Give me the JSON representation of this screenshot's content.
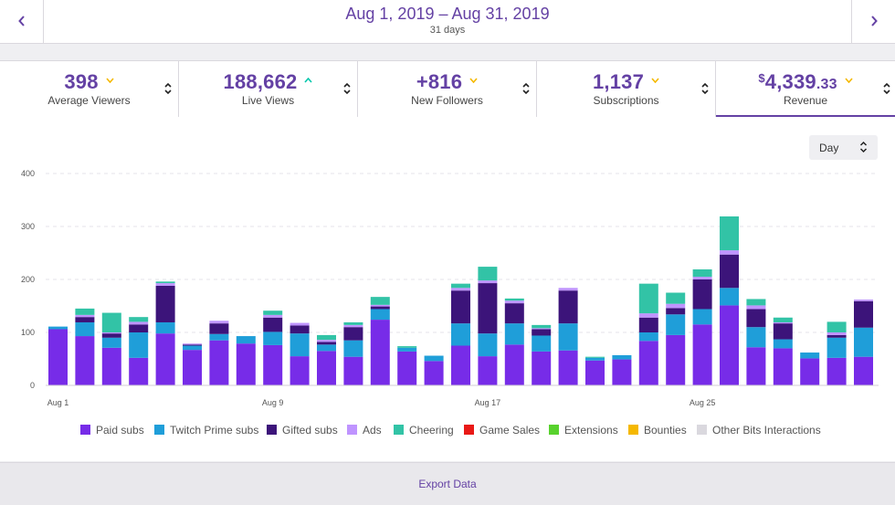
{
  "header": {
    "date_range": "Aug 1, 2019 – Aug 31, 2019",
    "days": "31 days",
    "prev_icon": "chevron-left-icon",
    "next_icon": "chevron-right-icon"
  },
  "stats": [
    {
      "value": "398",
      "label": "Average Viewers",
      "trend": "down",
      "trend_color": "#f5b800"
    },
    {
      "value": "188,662",
      "label": "Live Views",
      "trend": "up",
      "trend_color": "#00c7ac"
    },
    {
      "value": "+816",
      "label": "New Followers",
      "trend": "down",
      "trend_color": "#f5b800"
    },
    {
      "value": "1,137",
      "label": "Subscriptions",
      "trend": "down",
      "trend_color": "#f5b800"
    },
    {
      "currency": "$",
      "value": "4,339",
      "cents": ".33",
      "label": "Revenue",
      "trend": "down",
      "trend_color": "#f5b800"
    }
  ],
  "granularity": {
    "selected": "Day"
  },
  "footer": {
    "export_label": "Export Data"
  },
  "colors": {
    "paid": "#772ce8",
    "prime": "#1f9ed9",
    "gifted": "#3c147a",
    "ads": "#bf94ff",
    "cheering": "#32c3a6",
    "game_sales": "#e91916",
    "extensions": "#58d22d",
    "bounties": "#f5b800",
    "other_bits": "#dad8de",
    "accent": "#6441a4"
  },
  "chart_data": {
    "type": "bar",
    "stacked": true,
    "ylim": [
      0,
      400
    ],
    "yticks": [
      0,
      100,
      200,
      300,
      400
    ],
    "xtick_labels": [
      {
        "index": 0,
        "label": "Aug 1"
      },
      {
        "index": 8,
        "label": "Aug 9"
      },
      {
        "index": 16,
        "label": "Aug 17"
      },
      {
        "index": 24,
        "label": "Aug 25"
      }
    ],
    "categories": [
      "Aug 1",
      "Aug 2",
      "Aug 3",
      "Aug 4",
      "Aug 5",
      "Aug 6",
      "Aug 7",
      "Aug 8",
      "Aug 9",
      "Aug 10",
      "Aug 11",
      "Aug 12",
      "Aug 13",
      "Aug 14",
      "Aug 15",
      "Aug 16",
      "Aug 17",
      "Aug 18",
      "Aug 19",
      "Aug 20",
      "Aug 21",
      "Aug 22",
      "Aug 23",
      "Aug 24",
      "Aug 25",
      "Aug 26",
      "Aug 27",
      "Aug 28",
      "Aug 29",
      "Aug 30",
      "Aug 31"
    ],
    "grid": true,
    "legend_position": "bottom",
    "series": [
      {
        "name": "Paid subs",
        "color_key": "paid",
        "values": [
          106,
          93,
          71,
          52,
          98,
          67,
          85,
          79,
          76,
          55,
          65,
          54,
          124,
          64,
          46,
          75,
          55,
          77,
          64,
          66,
          47,
          49,
          84,
          95,
          115,
          151,
          72,
          70,
          51,
          52,
          54
        ]
      },
      {
        "name": "Twitch Prime subs",
        "color_key": "prime",
        "values": [
          5,
          26,
          19,
          48,
          21,
          8,
          12,
          14,
          25,
          43,
          12,
          31,
          20,
          7,
          10,
          42,
          43,
          40,
          30,
          51,
          5,
          8,
          16,
          39,
          29,
          33,
          38,
          17,
          11,
          38,
          55
        ]
      },
      {
        "name": "Gifted subs",
        "color_key": "gifted",
        "values": [
          0,
          10,
          8,
          15,
          69,
          2,
          20,
          0,
          27,
          15,
          5,
          25,
          5,
          0,
          0,
          62,
          95,
          38,
          12,
          62,
          0,
          0,
          28,
          12,
          56,
          63,
          34,
          30,
          0,
          5,
          50
        ]
      },
      {
        "name": "Ads",
        "color_key": "ads",
        "values": [
          0,
          4,
          2,
          5,
          5,
          2,
          5,
          0,
          5,
          5,
          4,
          4,
          3,
          0,
          0,
          5,
          5,
          5,
          2,
          5,
          0,
          0,
          8,
          8,
          5,
          8,
          7,
          2,
          0,
          5,
          3
        ]
      },
      {
        "name": "Cheering",
        "color_key": "cheering",
        "values": [
          0,
          12,
          37,
          9,
          3,
          0,
          0,
          0,
          8,
          0,
          9,
          5,
          15,
          3,
          0,
          8,
          26,
          4,
          6,
          0,
          2,
          0,
          56,
          21,
          14,
          64,
          12,
          9,
          0,
          20,
          0
        ]
      },
      {
        "name": "Game Sales",
        "color_key": "game_sales",
        "values": [
          0,
          0,
          0,
          0,
          0,
          0,
          0,
          0,
          0,
          0,
          0,
          0,
          0,
          0,
          0,
          0,
          0,
          0,
          0,
          0,
          0,
          0,
          0,
          0,
          0,
          0,
          0,
          0,
          0,
          0,
          0
        ]
      },
      {
        "name": "Extensions",
        "color_key": "extensions",
        "values": [
          0,
          0,
          0,
          0,
          0,
          0,
          0,
          0,
          0,
          0,
          0,
          0,
          0,
          0,
          0,
          0,
          0,
          0,
          0,
          0,
          0,
          0,
          0,
          0,
          0,
          0,
          0,
          0,
          0,
          0,
          0
        ]
      },
      {
        "name": "Bounties",
        "color_key": "bounties",
        "values": [
          0,
          0,
          0,
          0,
          0,
          0,
          0,
          0,
          0,
          0,
          0,
          0,
          0,
          0,
          0,
          0,
          0,
          0,
          0,
          0,
          0,
          0,
          0,
          0,
          0,
          0,
          0,
          0,
          0,
          0,
          0
        ]
      },
      {
        "name": "Other Bits Interactions",
        "color_key": "other_bits",
        "values": [
          0,
          0,
          0,
          0,
          0,
          0,
          0,
          0,
          0,
          0,
          0,
          0,
          0,
          0,
          0,
          0,
          0,
          0,
          0,
          0,
          0,
          0,
          0,
          0,
          0,
          0,
          0,
          0,
          0,
          0,
          0
        ]
      }
    ]
  }
}
